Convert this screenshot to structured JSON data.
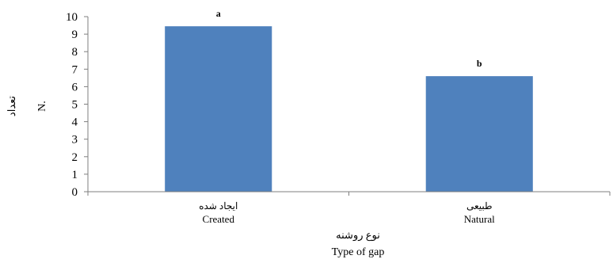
{
  "chart_data": {
    "type": "bar",
    "categories": [
      "ایجاد شده",
      "طبیعی"
    ],
    "categories_en": [
      "Created",
      "Natural"
    ],
    "values": [
      9.45,
      6.6
    ],
    "bar_labels": [
      "a",
      "b"
    ],
    "ylim": [
      0,
      10
    ],
    "yticks": [
      "0",
      "1",
      "2",
      "3",
      "4",
      "5",
      "6",
      "7",
      "8",
      "9",
      "10"
    ],
    "ylabel": "تعداد",
    "ylabel_en": "N.",
    "xlabel": "نوع روشنه",
    "xlabel_en": "Type of gap",
    "grid": false,
    "legend": "none",
    "colors": {
      "bar": "#4F81BD",
      "axis": "#7f7f7f",
      "text": "#000000"
    }
  }
}
